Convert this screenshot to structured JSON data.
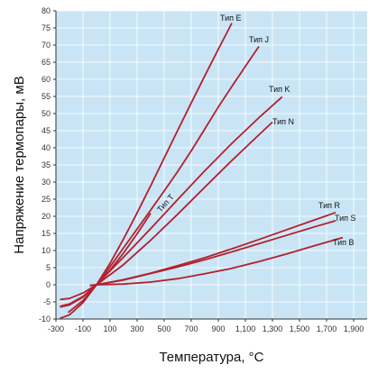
{
  "chart_data": {
    "type": "line",
    "title": "",
    "xlabel": "Температура, °C",
    "ylabel": "Напряжение термопары, мВ",
    "xlim": [
      -300,
      2000
    ],
    "ylim": [
      -10,
      80
    ],
    "x_ticks": [
      "-300",
      "-100",
      "100",
      "300",
      "500",
      "700",
      "900",
      "1,100",
      "1,300",
      "1,500",
      "1,700",
      "1,900"
    ],
    "x_tick_values": [
      -300,
      -100,
      100,
      300,
      500,
      700,
      900,
      1100,
      1300,
      1500,
      1700,
      1900
    ],
    "y_ticks": [
      "-10",
      "-5",
      "0",
      "5",
      "10",
      "15",
      "20",
      "25",
      "30",
      "35",
      "40",
      "45",
      "50",
      "55",
      "60",
      "65",
      "70",
      "75",
      "80"
    ],
    "y_tick_values": [
      -10,
      -5,
      0,
      5,
      10,
      15,
      20,
      25,
      30,
      35,
      40,
      45,
      50,
      55,
      60,
      65,
      70,
      75,
      80
    ],
    "grid": true,
    "plot_background": "#c9e5f5",
    "grid_color": "#ffffff",
    "line_color": "#b3202e",
    "series": [
      {
        "name": "Тип E",
        "x": [
          -270,
          -200,
          -100,
          0,
          100,
          200,
          300,
          400,
          500,
          600,
          700,
          800,
          900,
          1000
        ],
        "values": [
          -9.8,
          -8.8,
          -5.2,
          0,
          6.3,
          13.4,
          21.0,
          28.9,
          37.0,
          45.1,
          53.1,
          61.0,
          68.8,
          76.4
        ]
      },
      {
        "name": "Тип J",
        "x": [
          -210,
          -100,
          0,
          100,
          200,
          300,
          400,
          500,
          600,
          700,
          800,
          900,
          1000,
          1100,
          1200
        ],
        "values": [
          -8.1,
          -4.6,
          0,
          5.3,
          10.8,
          16.3,
          21.8,
          27.4,
          33.1,
          39.1,
          45.5,
          51.9,
          57.9,
          63.8,
          69.6
        ]
      },
      {
        "name": "Тип K",
        "x": [
          -270,
          -200,
          -100,
          0,
          200,
          400,
          600,
          800,
          1000,
          1200,
          1372
        ],
        "values": [
          -6.5,
          -5.9,
          -3.6,
          0,
          8.1,
          16.4,
          24.9,
          33.3,
          41.3,
          48.8,
          54.9
        ]
      },
      {
        "name": "Тип N",
        "x": [
          -270,
          -200,
          -100,
          0,
          200,
          400,
          600,
          800,
          1000,
          1200,
          1300
        ],
        "values": [
          -4.3,
          -4.0,
          -2.4,
          0,
          5.9,
          13.0,
          20.6,
          28.5,
          36.3,
          43.8,
          47.5
        ]
      },
      {
        "name": "Тип T",
        "x": [
          -270,
          -200,
          -100,
          0,
          100,
          200,
          300,
          400
        ],
        "values": [
          -6.3,
          -5.6,
          -3.4,
          0,
          4.3,
          9.3,
          14.9,
          20.9
        ]
      },
      {
        "name": "Тип R",
        "x": [
          -50,
          0,
          200,
          400,
          600,
          800,
          1000,
          1200,
          1400,
          1600,
          1768
        ],
        "values": [
          -0.2,
          0,
          1.5,
          3.4,
          5.6,
          7.9,
          10.5,
          13.2,
          16.0,
          18.8,
          21.1
        ]
      },
      {
        "name": "Тип S",
        "x": [
          -50,
          0,
          200,
          400,
          600,
          800,
          1000,
          1200,
          1400,
          1600,
          1768
        ],
        "values": [
          -0.2,
          0,
          1.4,
          3.3,
          5.2,
          7.3,
          9.6,
          12.0,
          14.4,
          16.8,
          18.7
        ]
      },
      {
        "name": "Тип B",
        "x": [
          0,
          200,
          400,
          600,
          800,
          1000,
          1200,
          1400,
          1600,
          1820
        ],
        "values": [
          0,
          0.2,
          0.8,
          1.8,
          3.2,
          4.8,
          6.8,
          8.96,
          11.3,
          13.8
        ]
      }
    ]
  }
}
